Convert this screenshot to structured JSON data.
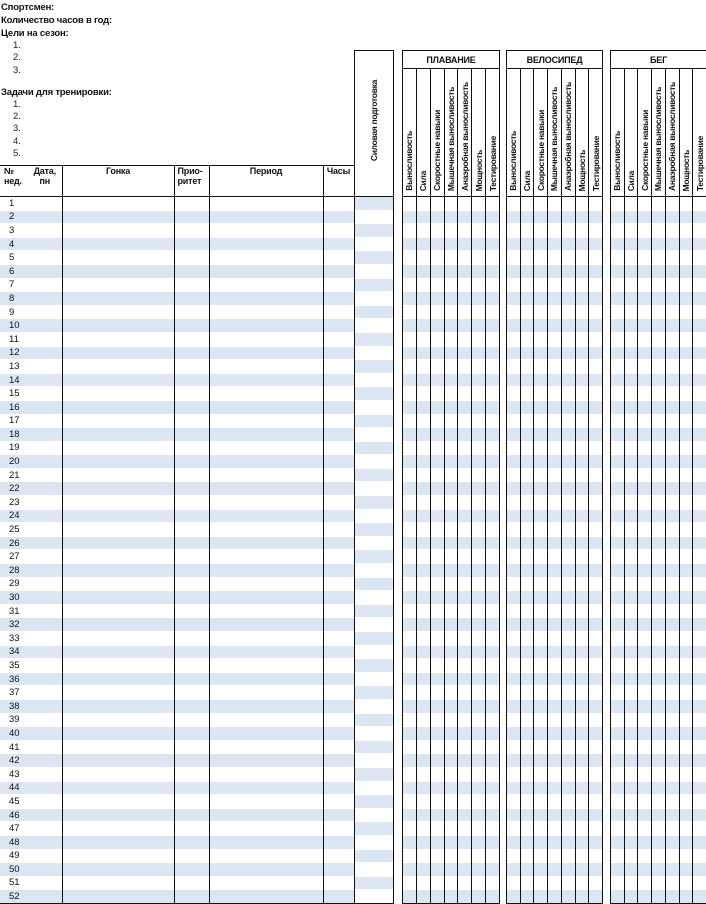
{
  "header": {
    "athlete_label": "Спортсмен:",
    "hours_label": "Количество часов в год:",
    "goals_label": "Цели на сезон:",
    "goals": [
      "1.",
      "2.",
      "3."
    ],
    "tasks_label": "Задачи для тренировки:",
    "tasks": [
      "1.",
      "2.",
      "3.",
      "4.",
      "5."
    ]
  },
  "table": {
    "col_week": "№ нед.",
    "col_date": "Дата, пн",
    "col_race": "Гонка",
    "col_priority": "Прио-ритет",
    "col_period": "Период",
    "col_hours": "Часы",
    "col_strength": "Силовая подготовка",
    "groups": [
      {
        "title": "ПЛАВАНИЕ"
      },
      {
        "title": "ВЕЛОСИПЕД"
      },
      {
        "title": "БЕГ"
      }
    ],
    "sub_columns": [
      "Выносливость",
      "Сила",
      "Скоростные навыки",
      "Мышечная выносливость",
      "Анаэробная выносливость",
      "Мощность",
      "Тестирование"
    ],
    "weeks": [
      "1",
      "2",
      "3",
      "4",
      "5",
      "6",
      "7",
      "8",
      "9",
      "10",
      "11",
      "12",
      "13",
      "14",
      "15",
      "16",
      "17",
      "18",
      "19",
      "20",
      "21",
      "22",
      "23",
      "24",
      "25",
      "26",
      "27",
      "28",
      "29",
      "30",
      "31",
      "32",
      "33",
      "34",
      "35",
      "36",
      "37",
      "38",
      "39",
      "40",
      "41",
      "42",
      "43",
      "44",
      "45",
      "46",
      "47",
      "48",
      "49",
      "50",
      "51",
      "52"
    ]
  },
  "colors": {
    "stripe": "#dce6f2",
    "border": "#111111"
  }
}
